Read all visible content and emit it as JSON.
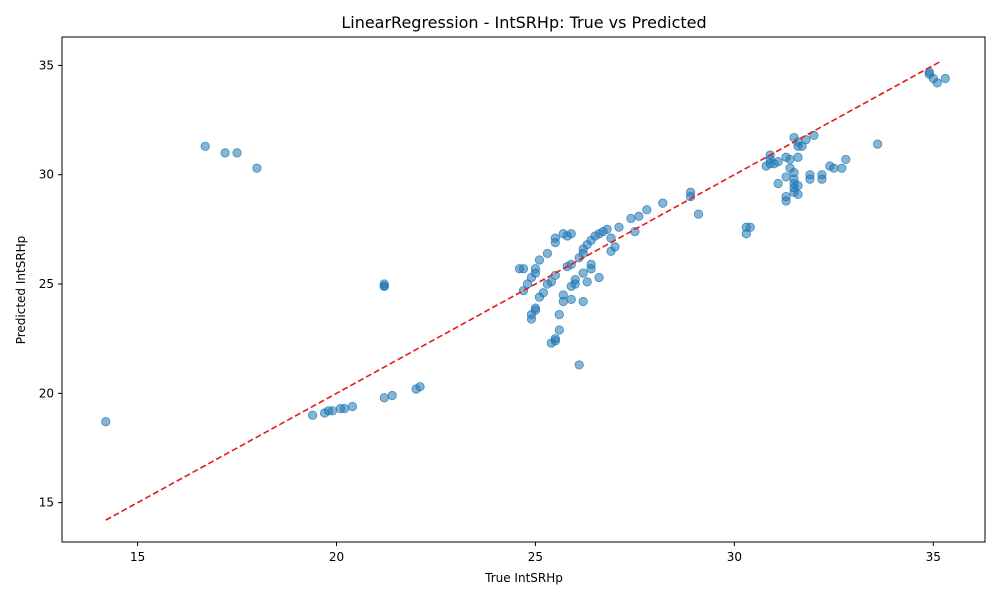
{
  "chart_data": {
    "type": "scatter",
    "title": "LinearRegression - IntSRHp: True vs Predicted",
    "xlabel": "True IntSRHp",
    "ylabel": "Predicted IntSRHp",
    "xlim": [
      13.1,
      36.3
    ],
    "ylim": [
      13.2,
      36.3
    ],
    "x_ticks": [
      15,
      20,
      25,
      30,
      35
    ],
    "y_ticks": [
      15,
      20,
      25,
      30,
      35
    ],
    "x_tick_labels": [
      "15",
      "20",
      "25",
      "30",
      "35"
    ],
    "y_tick_labels": [
      "15",
      "20",
      "25",
      "30",
      "35"
    ],
    "grid": false,
    "marker_color": "#1f77b4",
    "reference_line": {
      "style": "dashed",
      "color": "#e31a1c",
      "from": [
        14.2,
        14.2
      ],
      "to": [
        35.2,
        35.2
      ]
    },
    "points": [
      [
        14.2,
        18.7
      ],
      [
        16.7,
        31.3
      ],
      [
        17.2,
        31.0
      ],
      [
        17.5,
        31.0
      ],
      [
        18.0,
        30.3
      ],
      [
        19.4,
        19.0
      ],
      [
        19.7,
        19.1
      ],
      [
        19.8,
        19.2
      ],
      [
        19.9,
        19.2
      ],
      [
        20.1,
        19.3
      ],
      [
        20.2,
        19.3
      ],
      [
        20.4,
        19.4
      ],
      [
        21.2,
        19.8
      ],
      [
        21.4,
        19.9
      ],
      [
        22.0,
        20.2
      ],
      [
        22.1,
        20.3
      ],
      [
        21.2,
        24.9
      ],
      [
        21.2,
        25.0
      ],
      [
        21.2,
        24.9
      ],
      [
        24.6,
        25.7
      ],
      [
        24.7,
        25.7
      ],
      [
        24.7,
        24.7
      ],
      [
        24.8,
        25.0
      ],
      [
        24.9,
        25.3
      ],
      [
        25.0,
        25.5
      ],
      [
        25.0,
        25.7
      ],
      [
        24.9,
        23.4
      ],
      [
        24.9,
        23.6
      ],
      [
        25.0,
        23.8
      ],
      [
        25.0,
        23.9
      ],
      [
        25.1,
        24.4
      ],
      [
        25.2,
        24.6
      ],
      [
        25.1,
        26.1
      ],
      [
        25.3,
        26.4
      ],
      [
        25.3,
        25.0
      ],
      [
        25.4,
        25.1
      ],
      [
        25.5,
        25.4
      ],
      [
        25.4,
        22.3
      ],
      [
        25.5,
        22.4
      ],
      [
        25.5,
        22.5
      ],
      [
        25.6,
        23.6
      ],
      [
        25.6,
        22.9
      ],
      [
        25.5,
        27.1
      ],
      [
        25.5,
        26.9
      ],
      [
        25.7,
        27.3
      ],
      [
        25.8,
        27.2
      ],
      [
        25.9,
        27.3
      ],
      [
        25.7,
        24.2
      ],
      [
        25.7,
        24.5
      ],
      [
        25.9,
        24.3
      ],
      [
        25.9,
        24.9
      ],
      [
        26.0,
        25.0
      ],
      [
        26.0,
        25.2
      ],
      [
        25.8,
        25.8
      ],
      [
        25.9,
        25.9
      ],
      [
        26.1,
        26.2
      ],
      [
        26.2,
        26.4
      ],
      [
        26.2,
        26.6
      ],
      [
        26.3,
        26.8
      ],
      [
        26.4,
        27.0
      ],
      [
        26.5,
        27.2
      ],
      [
        26.6,
        27.3
      ],
      [
        26.7,
        27.4
      ],
      [
        26.8,
        27.5
      ],
      [
        26.9,
        27.1
      ],
      [
        26.2,
        25.5
      ],
      [
        26.3,
        25.1
      ],
      [
        26.4,
        25.7
      ],
      [
        26.4,
        25.9
      ],
      [
        26.2,
        24.2
      ],
      [
        26.1,
        21.3
      ],
      [
        26.6,
        25.3
      ],
      [
        26.9,
        26.5
      ],
      [
        27.0,
        26.7
      ],
      [
        27.1,
        27.6
      ],
      [
        27.4,
        28.0
      ],
      [
        27.6,
        28.1
      ],
      [
        27.5,
        27.4
      ],
      [
        27.8,
        28.4
      ],
      [
        28.2,
        28.7
      ],
      [
        28.9,
        29.2
      ],
      [
        28.9,
        29.0
      ],
      [
        29.1,
        28.2
      ],
      [
        30.3,
        27.6
      ],
      [
        30.3,
        27.3
      ],
      [
        30.4,
        27.6
      ],
      [
        30.8,
        30.4
      ],
      [
        30.9,
        30.5
      ],
      [
        30.9,
        30.7
      ],
      [
        30.9,
        30.9
      ],
      [
        31.0,
        30.5
      ],
      [
        31.1,
        30.6
      ],
      [
        31.1,
        29.6
      ],
      [
        31.3,
        30.8
      ],
      [
        31.4,
        30.7
      ],
      [
        31.3,
        29.9
      ],
      [
        31.3,
        29.0
      ],
      [
        31.3,
        28.8
      ],
      [
        31.4,
        30.3
      ],
      [
        31.5,
        30.1
      ],
      [
        31.5,
        29.8
      ],
      [
        31.5,
        29.6
      ],
      [
        31.5,
        29.4
      ],
      [
        31.5,
        29.2
      ],
      [
        31.6,
        31.3
      ],
      [
        31.6,
        31.5
      ],
      [
        31.5,
        31.7
      ],
      [
        31.6,
        30.8
      ],
      [
        31.6,
        29.5
      ],
      [
        31.6,
        29.1
      ],
      [
        31.7,
        31.3
      ],
      [
        31.8,
        31.6
      ],
      [
        31.9,
        30.0
      ],
      [
        31.9,
        29.8
      ],
      [
        32.0,
        31.8
      ],
      [
        32.2,
        30.0
      ],
      [
        32.2,
        29.8
      ],
      [
        32.4,
        30.4
      ],
      [
        32.5,
        30.3
      ],
      [
        32.7,
        30.3
      ],
      [
        32.8,
        30.7
      ],
      [
        33.6,
        31.4
      ],
      [
        34.9,
        34.7
      ],
      [
        34.9,
        34.6
      ],
      [
        35.0,
        34.4
      ],
      [
        35.1,
        34.2
      ],
      [
        35.3,
        34.4
      ]
    ]
  }
}
